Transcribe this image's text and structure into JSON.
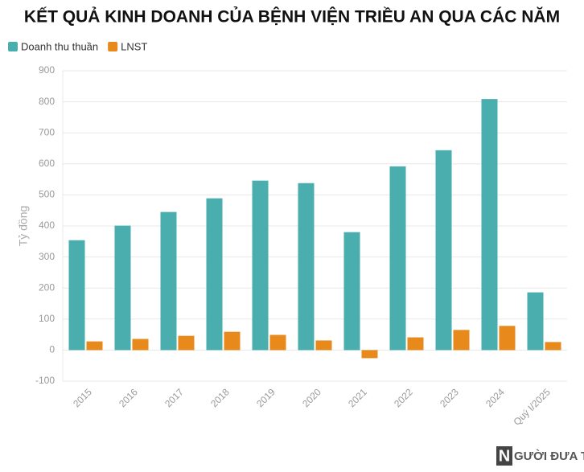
{
  "chart_data": {
    "type": "bar",
    "title": "KẾT QUẢ KINH DOANH CỦA BỆNH VIỆN TRIỀU AN QUA CÁC NĂM",
    "y_label": "Tỷ đồng",
    "categories": [
      "2015",
      "2016",
      "2017",
      "2018",
      "2019",
      "2020",
      "2021",
      "2022",
      "2023",
      "2024",
      "Quý I/2025"
    ],
    "series": [
      {
        "name": "Doanh thu thuần",
        "color": "#4aaeae",
        "values": [
          354,
          401,
          445,
          489,
          546,
          538,
          380,
          592,
          644,
          809,
          186
        ]
      },
      {
        "name": "LNST",
        "color": "#e8891c",
        "values": [
          28,
          36,
          46,
          59,
          49,
          31,
          -26,
          41,
          65,
          78,
          26
        ]
      }
    ],
    "ylim": [
      -100,
      900
    ],
    "yticks": [
      -100,
      0,
      100,
      200,
      300,
      400,
      500,
      600,
      700,
      800,
      900
    ],
    "grid": true,
    "legend": "top-left",
    "watermark": {
      "mark": "N",
      "text": "GƯỜI ĐƯA TIN"
    }
  }
}
